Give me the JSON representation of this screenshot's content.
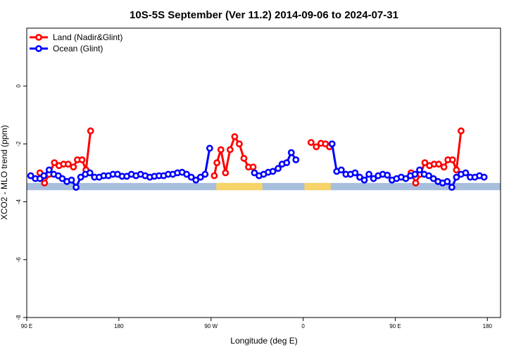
{
  "chart_data": {
    "type": "line",
    "title": "10S-5S September (Ver 11.2)   2014-09-06 to 2024-07-31",
    "xlabel": "Longitude (deg E)",
    "ylabel": "XCO2 - MLO trend (ppm)",
    "xlim": [
      90,
      450
    ],
    "ylim": [
      -8,
      2
    ],
    "x_ticks": [
      {
        "value": 90,
        "label": "90 E"
      },
      {
        "value": 160,
        "label": "180"
      },
      {
        "value": 230,
        "label": "90 W"
      },
      {
        "value": 300,
        "label": "0"
      },
      {
        "value": 370,
        "label": "90 E"
      },
      {
        "value": 440,
        "label": "180"
      }
    ],
    "y_ticks": [
      {
        "value": 0,
        "label": "0"
      },
      {
        "value": -2,
        "label": "-2"
      },
      {
        "value": -4,
        "label": "-4"
      },
      {
        "value": -6,
        "label": "-6"
      },
      {
        "value": -8,
        "label": "-8"
      }
    ],
    "legend_position": "top-left",
    "map_band": {
      "y_top": -3.35,
      "y_bottom": -3.6,
      "ocean_color": "#a7bfdc",
      "land_color": "#f7d46a"
    },
    "land_spans": [
      [
        234,
        269
      ],
      [
        301,
        321
      ]
    ],
    "series": [
      {
        "name": "Land (Nadir&Glint)",
        "color": "#ff0000",
        "segments": [
          [
            [
              100,
              -3.0
            ],
            [
              103.5,
              -3.35
            ],
            [
              107,
              -3.05
            ],
            [
              111,
              -2.65
            ],
            [
              114.5,
              -2.75
            ],
            [
              118,
              -2.7
            ],
            [
              121.5,
              -2.7
            ],
            [
              125.5,
              -2.8
            ],
            [
              128.5,
              -2.55
            ],
            [
              132,
              -2.55
            ],
            [
              135,
              -2.9
            ],
            [
              138.5,
              -1.55
            ]
          ],
          [
            [
              232.5,
              -3.1
            ],
            [
              234.5,
              -2.65
            ],
            [
              237.5,
              -2.2
            ],
            [
              241,
              -3.0
            ],
            [
              244.5,
              -2.2
            ],
            [
              248,
              -1.75
            ],
            [
              251.5,
              -2.0
            ],
            [
              255,
              -2.5
            ],
            [
              258.5,
              -2.8
            ],
            [
              262,
              -2.8
            ]
          ],
          [
            [
              306,
              -1.95
            ],
            [
              310,
              -2.1
            ],
            [
              313.5,
              -1.98
            ],
            [
              317,
              -2.0
            ],
            [
              320,
              -2.1
            ]
          ],
          [
            [
              382,
              -3.0
            ],
            [
              385.5,
              -3.35
            ],
            [
              389,
              -3.05
            ],
            [
              392.5,
              -2.65
            ],
            [
              396,
              -2.75
            ],
            [
              399.5,
              -2.7
            ],
            [
              403,
              -2.7
            ],
            [
              407,
              -2.8
            ],
            [
              410,
              -2.55
            ],
            [
              413.5,
              -2.55
            ],
            [
              416.5,
              -2.9
            ],
            [
              420,
              -1.55
            ]
          ]
        ]
      },
      {
        "name": "Ocean (Glint)",
        "color": "#0000ff",
        "segments": [
          [
            [
              93,
              -3.1
            ],
            [
              96.5,
              -3.2
            ],
            [
              100,
              -3.2
            ],
            [
              103,
              -3.1
            ],
            [
              107,
              -2.9
            ],
            [
              110.5,
              -3.05
            ],
            [
              114,
              -3.1
            ],
            [
              117,
              -3.2
            ],
            [
              120.5,
              -3.3
            ],
            [
              124,
              -3.25
            ],
            [
              127.5,
              -3.5
            ],
            [
              131,
              -3.15
            ],
            [
              134.5,
              -3.05
            ],
            [
              138,
              -3.0
            ],
            [
              141.5,
              -3.15
            ],
            [
              145,
              -3.15
            ],
            [
              148.5,
              -3.1
            ],
            [
              152,
              -3.1
            ],
            [
              155.5,
              -3.05
            ],
            [
              159,
              -3.05
            ],
            [
              162.5,
              -3.12
            ],
            [
              166,
              -3.12
            ],
            [
              169.5,
              -3.05
            ],
            [
              173,
              -3.1
            ],
            [
              176.5,
              -3.05
            ],
            [
              180,
              -3.1
            ],
            [
              183.5,
              -3.15
            ],
            [
              187,
              -3.12
            ],
            [
              190.5,
              -3.1
            ],
            [
              194,
              -3.1
            ],
            [
              197.5,
              -3.05
            ],
            [
              201,
              -3.05
            ],
            [
              204.5,
              -3.0
            ],
            [
              208,
              -2.98
            ],
            [
              211.5,
              -3.05
            ],
            [
              215,
              -3.15
            ],
            [
              218.5,
              -3.25
            ],
            [
              222,
              -3.15
            ],
            [
              225.5,
              -3.05
            ],
            [
              229,
              -2.15
            ]
          ],
          [
            [
              263,
              -3.0
            ],
            [
              266.5,
              -3.1
            ],
            [
              270,
              -3.05
            ],
            [
              273.5,
              -2.98
            ],
            [
              277,
              -2.95
            ],
            [
              281,
              -2.85
            ],
            [
              284,
              -2.7
            ],
            [
              287.5,
              -2.65
            ],
            [
              291,
              -2.3
            ],
            [
              294.5,
              -2.55
            ]
          ],
          [
            [
              322,
              -2.0
            ],
            [
              325.5,
              -2.95
            ],
            [
              329,
              -2.9
            ],
            [
              332.5,
              -3.05
            ],
            [
              336,
              -3.05
            ],
            [
              339.5,
              -3.0
            ],
            [
              343,
              -3.15
            ],
            [
              346.5,
              -3.25
            ],
            [
              350,
              -3.05
            ],
            [
              353.5,
              -3.2
            ],
            [
              357,
              -3.1
            ],
            [
              360.5,
              -3.05
            ],
            [
              364,
              -3.08
            ],
            [
              367.5,
              -3.25
            ],
            [
              371,
              -3.2
            ],
            [
              374.5,
              -3.15
            ],
            [
              378,
              -3.2
            ],
            [
              381.5,
              -3.1
            ],
            [
              385,
              -3.05
            ],
            [
              388.5,
              -2.9
            ],
            [
              392,
              -3.05
            ],
            [
              395.5,
              -3.1
            ],
            [
              399,
              -3.2
            ],
            [
              402.5,
              -3.3
            ],
            [
              406,
              -3.35
            ],
            [
              409.5,
              -3.3
            ],
            [
              413,
              -3.5
            ],
            [
              416.5,
              -3.15
            ],
            [
              420,
              -3.05
            ],
            [
              423.5,
              -3.0
            ],
            [
              427,
              -3.15
            ],
            [
              430.5,
              -3.15
            ],
            [
              434,
              -3.1
            ],
            [
              437.5,
              -3.15
            ]
          ]
        ]
      }
    ]
  }
}
